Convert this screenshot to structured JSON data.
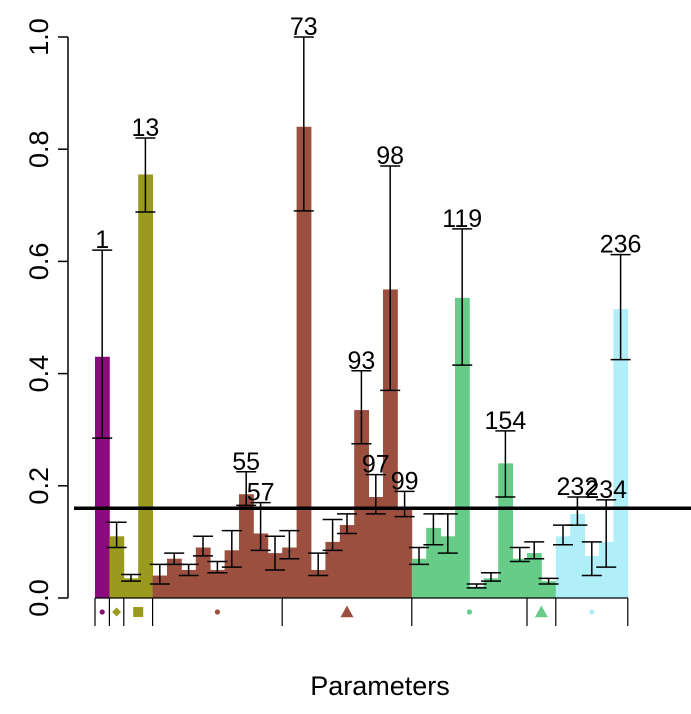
{
  "chart_data": {
    "type": "bar",
    "title": "",
    "xlabel": "Parameters",
    "ylabel": "",
    "ylim": [
      0,
      1
    ],
    "yticks": [
      0,
      0.2,
      0.4,
      0.6,
      0.8,
      1
    ],
    "ytick_labels": [
      "0.0",
      "0.2",
      "0.4",
      "0.6",
      "0.8",
      "1.0"
    ],
    "threshold": 0.16,
    "groups": [
      {
        "color": "#8b0a7e",
        "marker": "circle",
        "marker_size": "small",
        "bars": [
          {
            "value": 0.43,
            "err_low": 0.285,
            "err_high": 0.62,
            "label": "1"
          }
        ]
      },
      {
        "color": "#9a9a1e",
        "marker": "diamond",
        "marker_size": "small",
        "bars": [
          {
            "value": 0.11,
            "err_low": 0.09,
            "err_high": 0.135,
            "label": ""
          }
        ]
      },
      {
        "color": "#9a9a1e",
        "marker": "square",
        "marker_size": "medium",
        "bars": [
          {
            "value": 0.035,
            "err_low": 0.03,
            "err_high": 0.042,
            "label": ""
          },
          {
            "value": 0.755,
            "err_low": 0.688,
            "err_high": 0.82,
            "label": "13"
          }
        ]
      },
      {
        "color": "#9b4f3e",
        "marker": "circle",
        "marker_size": "small",
        "bars": [
          {
            "value": 0.04,
            "err_low": 0.025,
            "err_high": 0.06,
            "label": ""
          },
          {
            "value": 0.07,
            "err_low": 0.06,
            "err_high": 0.08,
            "label": ""
          },
          {
            "value": 0.05,
            "err_low": 0.04,
            "err_high": 0.06,
            "label": ""
          },
          {
            "value": 0.09,
            "err_low": 0.075,
            "err_high": 0.11,
            "label": ""
          },
          {
            "value": 0.05,
            "err_low": 0.045,
            "err_high": 0.065,
            "label": ""
          },
          {
            "value": 0.085,
            "err_low": 0.055,
            "err_high": 0.12,
            "label": ""
          },
          {
            "value": 0.185,
            "err_low": 0.165,
            "err_high": 0.225,
            "label": "55"
          },
          {
            "value": 0.115,
            "err_low": 0.085,
            "err_high": 0.17,
            "label": "57"
          },
          {
            "value": 0.08,
            "err_low": 0.05,
            "err_high": 0.11,
            "label": ""
          }
        ]
      },
      {
        "color": "#9b4f3e",
        "marker": "triangle",
        "marker_size": "medium",
        "bars": [
          {
            "value": 0.09,
            "err_low": 0.07,
            "err_high": 0.12,
            "label": ""
          },
          {
            "value": 0.84,
            "err_low": 0.69,
            "err_high": 1.0,
            "label": "73"
          },
          {
            "value": 0.05,
            "err_low": 0.04,
            "err_high": 0.08,
            "label": ""
          },
          {
            "value": 0.1,
            "err_low": 0.085,
            "err_high": 0.14,
            "label": ""
          },
          {
            "value": 0.13,
            "err_low": 0.115,
            "err_high": 0.15,
            "label": ""
          },
          {
            "value": 0.335,
            "err_low": 0.275,
            "err_high": 0.405,
            "label": "93"
          },
          {
            "value": 0.18,
            "err_low": 0.15,
            "err_high": 0.22,
            "label": "97"
          },
          {
            "value": 0.55,
            "err_low": 0.37,
            "err_high": 0.77,
            "label": "98"
          },
          {
            "value": 0.16,
            "err_low": 0.145,
            "err_high": 0.19,
            "label": "99"
          }
        ]
      },
      {
        "color": "#66cc88",
        "marker": "circle",
        "marker_size": "small",
        "bars": [
          {
            "value": 0.07,
            "err_low": 0.06,
            "err_high": 0.09,
            "label": ""
          },
          {
            "value": 0.125,
            "err_low": 0.095,
            "err_high": 0.15,
            "label": ""
          },
          {
            "value": 0.11,
            "err_low": 0.08,
            "err_high": 0.15,
            "label": ""
          },
          {
            "value": 0.535,
            "err_low": 0.415,
            "err_high": 0.658,
            "label": "119"
          },
          {
            "value": 0.02,
            "err_low": 0.018,
            "err_high": 0.025,
            "label": ""
          },
          {
            "value": 0.035,
            "err_low": 0.03,
            "err_high": 0.045,
            "label": ""
          },
          {
            "value": 0.24,
            "err_low": 0.18,
            "err_high": 0.298,
            "label": "154"
          },
          {
            "value": 0.07,
            "err_low": 0.065,
            "err_high": 0.09,
            "label": ""
          }
        ]
      },
      {
        "color": "#66cc88",
        "marker": "triangle",
        "marker_size": "medium",
        "bars": [
          {
            "value": 0.08,
            "err_low": 0.07,
            "err_high": 0.1,
            "label": ""
          },
          {
            "value": 0.03,
            "err_low": 0.025,
            "err_high": 0.035,
            "label": ""
          }
        ]
      },
      {
        "color": "#b0eef8",
        "marker": "circle",
        "marker_size": "small",
        "bars": [
          {
            "value": 0.11,
            "err_low": 0.095,
            "err_high": 0.13,
            "label": ""
          },
          {
            "value": 0.15,
            "err_low": 0.13,
            "err_high": 0.18,
            "label": "232"
          },
          {
            "value": 0.075,
            "err_low": 0.04,
            "err_high": 0.1,
            "label": ""
          },
          {
            "value": 0.1,
            "err_low": 0.055,
            "err_high": 0.175,
            "label": "234"
          },
          {
            "value": 0.515,
            "err_low": 0.425,
            "err_high": 0.612,
            "label": "236"
          }
        ]
      }
    ]
  }
}
